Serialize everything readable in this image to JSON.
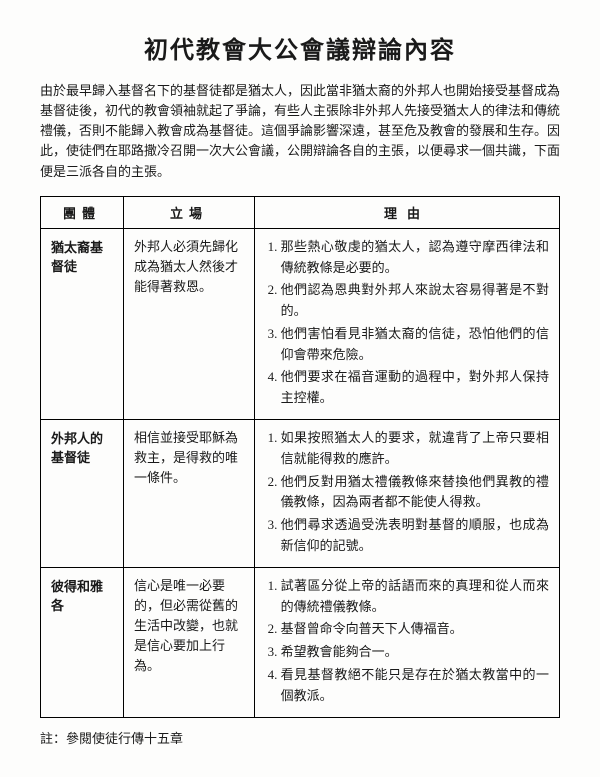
{
  "title": "初代教會大公會議辯論內容",
  "intro": "由於最早歸入基督名下的基督徒都是猶太人，因此當非猶太裔的外邦人也開始接受基督成為基督徒後，初代的教會領袖就起了爭論，有些人主張除非外邦人先接受猶太人的律法和傳統禮儀，否則不能歸入教會成為基督徒。這個爭論影響深遠，甚至危及教會的發展和生存。因此，使徒們在耶路撒冷召開一次大公會議，公開辯論各自的主張，以便尋求一個共識，下面便是三派各自的主張。",
  "columns": [
    "團體",
    "立場",
    "理由"
  ],
  "rows": [
    {
      "group": "猶太裔基督徒",
      "stance": "外邦人必須先歸化成為猶太人然後才能得著救恩。",
      "reasons": [
        "那些熱心敬虔的猶太人，認為遵守摩西律法和傳統教條是必要的。",
        "他們認為恩典對外邦人來說太容易得著是不對的。",
        "他們害怕看見非猶太裔的信徒，恐怕他們的信仰會帶來危險。",
        "他們要求在福音運動的過程中，對外邦人保持主控權。"
      ]
    },
    {
      "group": "外邦人的基督徒",
      "stance": "相信並接受耶穌為救主，是得救的唯一條件。",
      "reasons": [
        "如果按照猶太人的要求，就違背了上帝只要相信就能得救的應許。",
        "他們反對用猶太禮儀教條來替換他們異教的禮儀教條，因為兩者都不能使人得救。",
        "他們尋求透過受洗表明對基督的順服，也成為新信仰的記號。"
      ]
    },
    {
      "group": "彼得和雅各",
      "stance": "信心是唯一必要的，但必需從舊的生活中改變，也就是信心要加上行為。",
      "reasons": [
        "試著區分從上帝的話語而來的真理和從人而來的傳統禮儀教條。",
        "基督曾命令向普天下人傳福音。",
        "希望教會能夠合一。",
        "看見基督教絕不能只是存在於猶太教當中的一個教派。"
      ]
    }
  ],
  "footnote": "註：參閱使徒行傳十五章"
}
